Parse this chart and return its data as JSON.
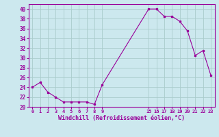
{
  "x": [
    0,
    1,
    2,
    3,
    4,
    5,
    6,
    7,
    8,
    9,
    15,
    16,
    17,
    18,
    19,
    20,
    21,
    22,
    23
  ],
  "y": [
    24,
    25,
    23,
    22,
    21,
    21,
    21,
    21,
    20.5,
    24.5,
    40,
    40,
    38.5,
    38.5,
    37.5,
    35.5,
    30.5,
    31.5,
    26.5
  ],
  "line_color": "#990099",
  "marker": "s",
  "marker_size": 2.0,
  "bg_color": "#cce8ee",
  "grid_color": "#aacccc",
  "xlabel": "Windchill (Refroidissement éolien,°C)",
  "xlabel_color": "#990099",
  "tick_color": "#990099",
  "ylim": [
    20,
    41
  ],
  "yticks": [
    20,
    22,
    24,
    26,
    28,
    30,
    32,
    34,
    36,
    38,
    40
  ],
  "xticks": [
    0,
    1,
    2,
    3,
    4,
    5,
    6,
    7,
    8,
    9,
    15,
    16,
    17,
    18,
    19,
    20,
    21,
    22,
    23
  ],
  "xtick_labels": [
    "0",
    "1",
    "2",
    "3",
    "4",
    "5",
    "6",
    "7",
    "8",
    "9",
    "15",
    "16",
    "17",
    "18",
    "19",
    "20",
    "21",
    "22",
    "23"
  ],
  "xlim": [
    -0.5,
    23.5
  ]
}
